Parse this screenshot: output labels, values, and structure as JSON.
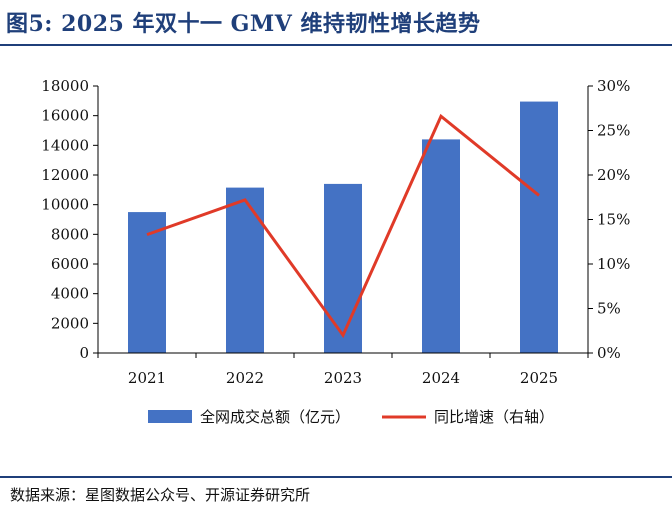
{
  "figure": {
    "title": "图5:  2025 年双十一 GMV 维持韧性增长趋势",
    "source": "数据来源：星图数据公众号、开源证券研究所"
  },
  "colors": {
    "bar": "#4472c4",
    "line": "#e03a28",
    "axis": "#000000",
    "title": "#1f3f7a"
  },
  "chart_data": {
    "type": "bar+line",
    "categories": [
      "2021",
      "2022",
      "2023",
      "2024",
      "2025"
    ],
    "series": [
      {
        "name": "全网成交总额（亿元）",
        "type": "bar",
        "axis": "left",
        "values": [
          9500,
          11150,
          11400,
          14400,
          16950
        ]
      },
      {
        "name": "同比增速（右轴）",
        "type": "line",
        "axis": "right",
        "values": [
          13.3,
          17.2,
          2.0,
          26.6,
          17.7
        ]
      }
    ],
    "y_left": {
      "min": 0,
      "max": 18000,
      "step": 2000,
      "ticks": [
        "0",
        "2000",
        "4000",
        "6000",
        "8000",
        "10000",
        "12000",
        "14000",
        "16000",
        "18000"
      ]
    },
    "y_right": {
      "min": 0,
      "max": 30,
      "step": 5,
      "ticks": [
        "0%",
        "5%",
        "10%",
        "15%",
        "20%",
        "25%",
        "30%"
      ]
    },
    "legend_position": "bottom",
    "grid": false
  }
}
